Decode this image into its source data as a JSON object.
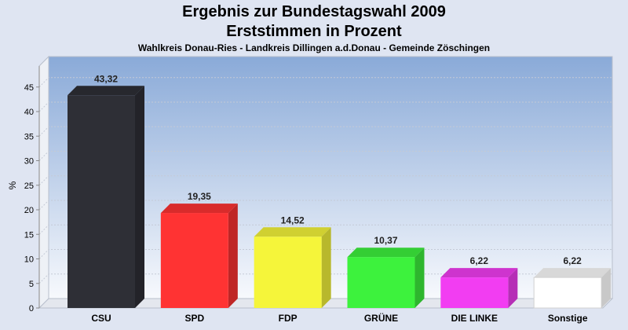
{
  "chart_data": {
    "type": "bar",
    "title": "Ergebnis zur Bundestagswahl 2009",
    "subtitle": "Erststimmen in Prozent",
    "caption": "Wahlkreis Donau-Ries - Landkreis Dillingen a.d.Donau - Gemeinde Zöschingen",
    "ylabel": "%",
    "xlabel": "",
    "ylim": [
      0,
      45
    ],
    "yticks": [
      "0",
      "5",
      "10",
      "15",
      "20",
      "25",
      "30",
      "35",
      "40",
      "45"
    ],
    "categories": [
      "CSU",
      "SPD",
      "FDP",
      "GRÜNE",
      "DIE LINKE",
      "Sonstige"
    ],
    "values": [
      43.32,
      19.35,
      14.52,
      10.37,
      6.22,
      6.22
    ],
    "value_labels": [
      "43,32",
      "19,35",
      "14,52",
      "10,37",
      "6,22",
      "6,22"
    ],
    "colors": [
      "#2e2f36",
      "#ff3333",
      "#f5f53a",
      "#3df23d",
      "#f23df2",
      "#ffffff"
    ],
    "grid": true,
    "style": "3d"
  }
}
